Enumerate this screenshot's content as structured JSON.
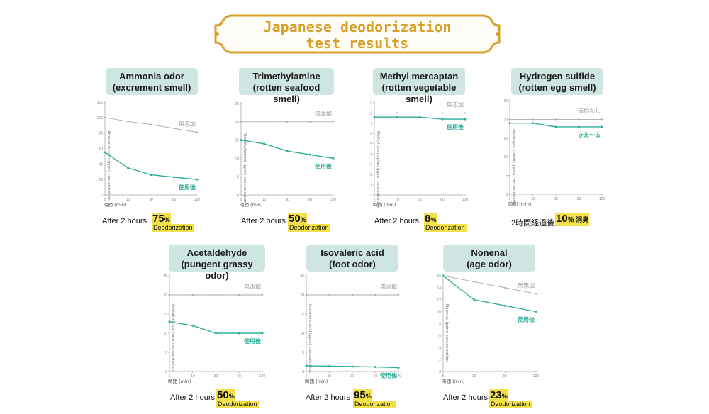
{
  "page": {
    "title_line1": "Japanese deodorization",
    "title_line2": "test results"
  },
  "colors": {
    "gold": "#d6a12a",
    "teal": "#2eae9a",
    "gray": "#aaaaaa",
    "label_bg": "#cfe5e2",
    "highlight": "#f2e14a"
  },
  "panels": [
    {
      "label_line1": "Ammonia odor",
      "label_line2": "(excrement smell)",
      "result_prefix": "After 2 hours",
      "result_number": "75",
      "result_unit": "%",
      "result_word": "Deodorization",
      "chart_data": {
        "type": "line",
        "x": [
          "5",
          "10",
          "30",
          "60",
          "120"
        ],
        "xlabel": "時間 (min)",
        "ylabel": "Ammonia odor (ppm) concentration",
        "ylim": [
          0,
          120
        ],
        "yticks": [
          0,
          20,
          40,
          60,
          80,
          100,
          120
        ],
        "series": [
          {
            "name": "無添加",
            "values": [
              100,
              95,
              91,
              86,
              81
            ]
          },
          {
            "name": "使用後",
            "values": [
              55,
              35,
              26,
              23,
              20
            ]
          }
        ]
      }
    },
    {
      "label_line1": "Trimethylamine",
      "label_line2": "(rotten seafood smell)",
      "result_prefix": "After 2 hours",
      "result_number": "50",
      "result_unit": "%",
      "result_word": "Deodorization",
      "chart_data": {
        "type": "line",
        "x": [
          "5",
          "10",
          "30",
          "60",
          "120"
        ],
        "xlabel": "時間 (min)",
        "ylabel": "Trimethylamine (ppm) concentration",
        "ylim": [
          0,
          25
        ],
        "yticks": [
          0,
          5,
          10,
          15,
          20,
          25
        ],
        "series": [
          {
            "name": "無添加",
            "values": [
              20,
              20,
              20,
              20,
              20
            ]
          },
          {
            "name": "使用後",
            "values": [
              15,
              14,
              12,
              11,
              10
            ]
          }
        ]
      }
    },
    {
      "label_line1": "Methyl mercaptan",
      "label_line2": "(rotten vegetable smell)",
      "result_prefix": "After 2 hours",
      "result_number": "8",
      "result_unit": "%",
      "result_word": "Deodorization",
      "chart_data": {
        "type": "line",
        "x": [
          "5",
          "10",
          "30",
          "60",
          "120"
        ],
        "xlabel": "時間 (min)",
        "ylabel": "Methyl mercaptan (ppm) concentration",
        "ylim": [
          0,
          9
        ],
        "yticks": [
          0,
          1,
          2,
          3,
          4,
          5,
          6,
          7,
          8,
          9
        ],
        "series": [
          {
            "name": "無添加",
            "values": [
              8,
              8,
              8,
              8,
              8
            ]
          },
          {
            "name": "使用後",
            "values": [
              7.6,
              7.6,
              7.6,
              7.4,
              7.4
            ]
          }
        ]
      }
    },
    {
      "label_line1": "Hydrogen sulfide",
      "label_line2": "(rotten egg smell)",
      "result_prefix": "2時間経過後",
      "result_number": "10",
      "result_unit": "％ 消臭",
      "result_word": "",
      "chart_data": {
        "type": "line",
        "x": [
          "5",
          "10",
          "30",
          "60",
          "120"
        ],
        "xlabel": "時間 (min)",
        "ylabel": "Hydrogen sulfide (ppm) concentration",
        "ylim": [
          0,
          25
        ],
        "yticks": [
          0,
          5,
          10,
          15,
          20,
          25
        ],
        "series": [
          {
            "name": "添加なし",
            "values": [
              20,
              20,
              20,
              20,
              20
            ]
          },
          {
            "name": "きえ〜る",
            "values": [
              19,
              19,
              18,
              18,
              18
            ]
          }
        ]
      }
    },
    {
      "label_line1": "Acetaldehyde",
      "label_line2": "(pungent grassy odor)",
      "result_prefix": "After 2 hours",
      "result_number": "50",
      "result_unit": "%",
      "result_word": "Deodorization",
      "chart_data": {
        "type": "line",
        "x": [
          "5",
          "10",
          "30",
          "60",
          "120"
        ],
        "xlabel": "時間 (min)",
        "ylabel": "Acetaldehyde (ppm) concentration",
        "ylim": [
          0,
          25
        ],
        "yticks": [
          0,
          5,
          10,
          15,
          20,
          25
        ],
        "series": [
          {
            "name": "無添加",
            "values": [
              20,
              20,
              20,
              20,
              20
            ]
          },
          {
            "name": "使用後",
            "values": [
              13,
              12,
              10,
              10,
              10
            ]
          }
        ]
      }
    },
    {
      "label_line1": "Isovaleric acid",
      "label_line2": "(foot odor)",
      "result_prefix": "After 2 hours",
      "result_number": "95",
      "result_unit": "%",
      "result_word": "Deodorization",
      "chart_data": {
        "type": "line",
        "x": [
          "5",
          "10",
          "30",
          "60",
          "120"
        ],
        "xlabel": "時間 (min)",
        "ylabel": "Isovaleric acid (ppm) concentration",
        "ylim": [
          0,
          25
        ],
        "yticks": [
          0,
          5,
          10,
          15,
          20,
          25
        ],
        "series": [
          {
            "name": "無添加",
            "values": [
              20,
              20,
              20,
              20,
              20
            ]
          },
          {
            "name": "使用後",
            "values": [
              1.5,
              1.4,
              1.3,
              1.2,
              1
            ]
          }
        ]
      }
    },
    {
      "label_line1": "Nonenal",
      "label_line2": "(age odor)",
      "result_prefix": "After 2 hours",
      "result_number": "23",
      "result_unit": "%",
      "result_word": "Deodorization",
      "chart_data": {
        "type": "line",
        "x": [
          "5",
          "10",
          "60",
          "120"
        ],
        "xlabel": "時間 (min)",
        "ylabel": "Nonenal (ppm) concentration",
        "ylim": [
          0,
          16
        ],
        "yticks": [
          0,
          2,
          4,
          6,
          8,
          10,
          12,
          14,
          16
        ],
        "series": [
          {
            "name": "無添加",
            "values": [
              16,
              15,
              14,
              13
            ]
          },
          {
            "name": "使用後",
            "values": [
              16,
              12,
              11,
              10
            ]
          }
        ]
      }
    }
  ]
}
